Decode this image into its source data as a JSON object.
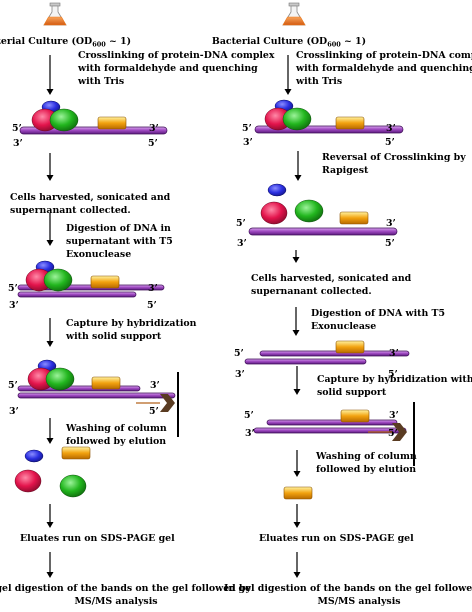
{
  "left": {
    "culture": {
      "main": "Bacterial Culture (OD",
      "sub": "600",
      "tail": " ~ 1)"
    },
    "steps": {
      "crosslink": [
        "Crosslinking of protein-DNA complex",
        "with formaldehyde and quenching",
        "with Tris"
      ],
      "harvest": [
        "Cells harvested, sonicated and",
        "supernanant collected."
      ],
      "digest": [
        "Digestion of DNA in",
        "supernatant with T5",
        "Exonuclease"
      ],
      "capture": [
        "Capture by hybridization",
        "with solid support"
      ],
      "wash": [
        "Washing of column",
        "followed by elution"
      ],
      "sds": [
        "Eluates run on SDS-PAGE gel"
      ],
      "ingel": [
        "In gel digestion of the bands on the gel followed by",
        "MS/MS analysis"
      ]
    }
  },
  "right": {
    "culture": {
      "main": "Bacterial Culture (OD",
      "sub": "600",
      "tail": " ~ 1)"
    },
    "steps": {
      "crosslink": [
        "Crosslinking of protein-DNA complex",
        "with formaldehyde and quenching",
        "with Tris"
      ],
      "reversal": [
        "Reversal of Crosslinking by",
        "Rapigest"
      ],
      "harvest": [
        "Cells harvested, sonicated and",
        "supernanant collected."
      ],
      "digest": [
        "Digestion of DNA with T5",
        "Exonuclease"
      ],
      "capture": [
        "Capture by hybridization with",
        "solid support"
      ],
      "wash": [
        "Washing of column",
        "followed by elution"
      ],
      "sds": [
        "Eluates run on SDS-PAGE gel"
      ],
      "ingel": [
        "In gel digestion of the bands on the gel followed by",
        "MS/MS analysis"
      ]
    }
  },
  "labels": {
    "five_prime": "5’",
    "three_prime": "3’"
  },
  "colors": {
    "dna_fill": "#a24cc4",
    "dna_stroke": "#3d0d55",
    "protein_blue": "#2b2fe0",
    "protein_red": "#e3144c",
    "protein_green": "#22b61e",
    "protein_yellow": "#f2a20f",
    "flask_orange": "#ef7b1c",
    "solid_support": "#5a3c22"
  },
  "icons": [
    "flask-icon",
    "down-arrow-icon",
    "solid-support-icon"
  ]
}
